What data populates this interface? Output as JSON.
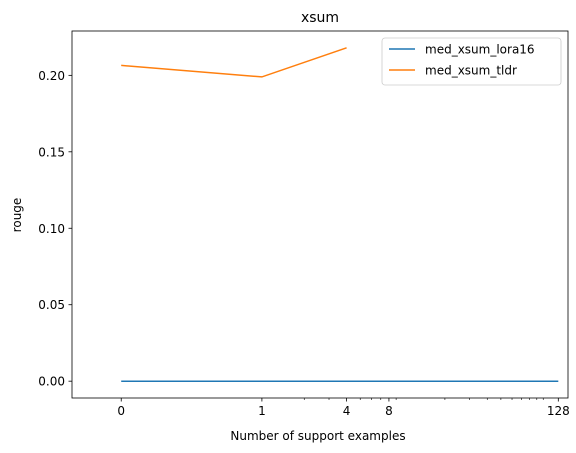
{
  "chart_data": {
    "type": "line",
    "title": "xsum",
    "xlabel": "Number of support examples",
    "ylabel": "rouge",
    "x_scale": "symlog",
    "xlim": [
      -0.35,
      150
    ],
    "ylim": [
      -0.011,
      0.229
    ],
    "x_ticks": [
      {
        "value": 0,
        "label": "0"
      },
      {
        "value": 1,
        "label": "1"
      },
      {
        "value": 4,
        "label": "4"
      },
      {
        "value": 8,
        "label": "8"
      },
      {
        "value": 128,
        "label": "128"
      }
    ],
    "y_ticks": [
      {
        "value": 0.0,
        "label": "0.00"
      },
      {
        "value": 0.05,
        "label": "0.05"
      },
      {
        "value": 0.1,
        "label": "0.10"
      },
      {
        "value": 0.15,
        "label": "0.15"
      },
      {
        "value": 0.2,
        "label": "0.20"
      }
    ],
    "grid": false,
    "legend_position": "top-right",
    "series": [
      {
        "name": "med_xsum_lora16",
        "color": "#1f77b4",
        "x": [
          0,
          1,
          4,
          128
        ],
        "y": [
          0.0,
          0.0,
          0.0,
          0.0
        ]
      },
      {
        "name": "med_xsum_tldr",
        "color": "#ff7f0e",
        "x": [
          0,
          1,
          4
        ],
        "y": [
          0.2065,
          0.199,
          0.218
        ]
      }
    ]
  }
}
